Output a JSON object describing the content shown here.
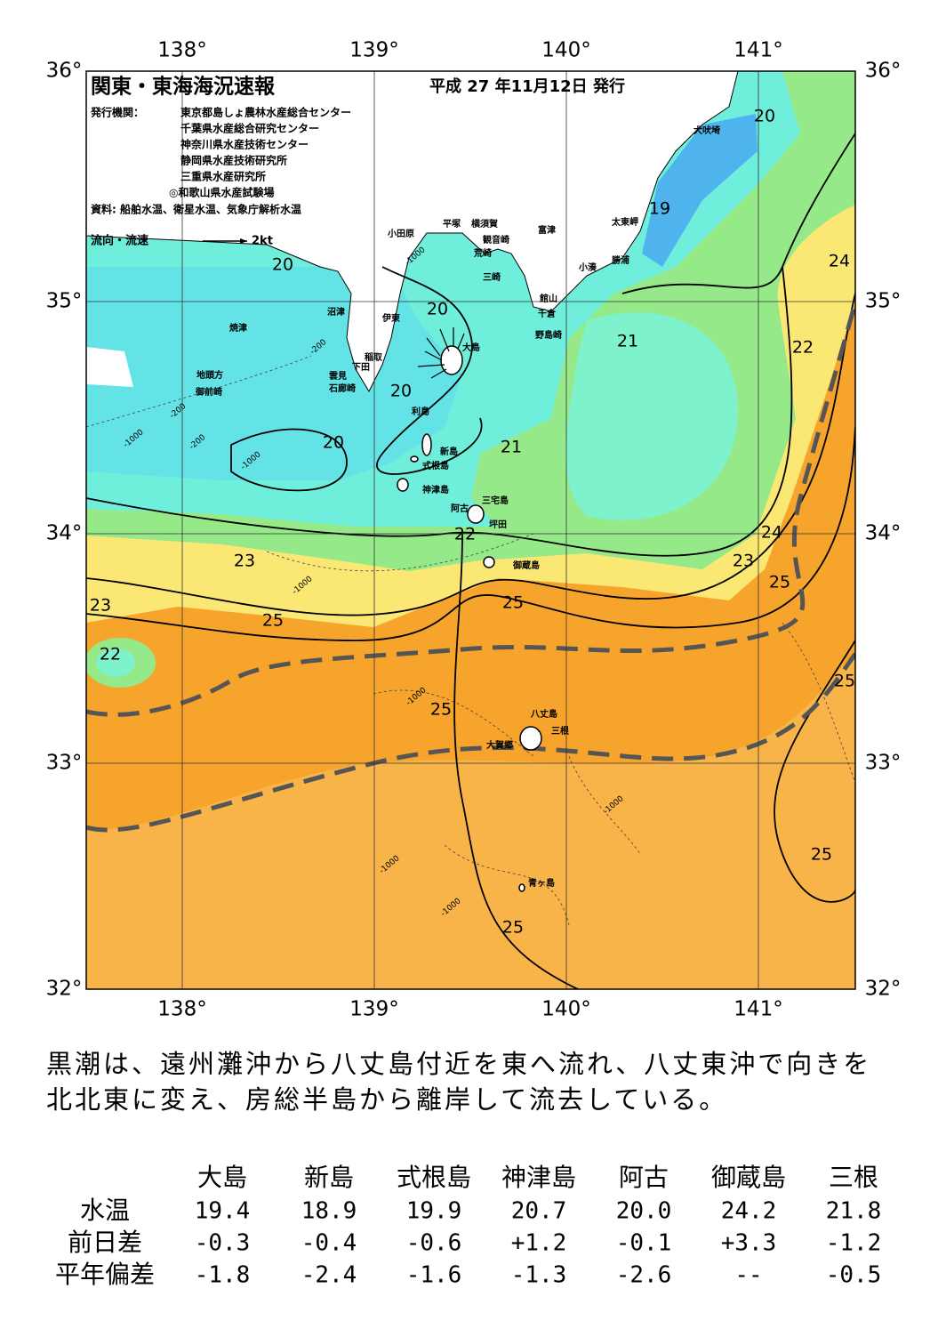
{
  "header": {
    "title": "関東・東海海況速報",
    "date": "平成 27 年11月12日 発行",
    "agency_label": "発行機関：",
    "agencies": [
      "東京都島しょ農林水産総合センター",
      "千葉県水産総合研究センター",
      "神奈川県水産技術センター",
      "静岡県水産技術研究所",
      "三重県水産研究所",
      "◎和歌山県水産試験場"
    ],
    "source": "資料: 船舶水温、衛星水温、気象庁解析水温",
    "legend_label": "流向・流速",
    "legend_speed": "2kt"
  },
  "map": {
    "lon_labels": [
      "138°",
      "139°",
      "140°",
      "141°"
    ],
    "lat_labels": [
      "36°",
      "35°",
      "34°",
      "33°",
      "32°"
    ],
    "places": [
      "犬吠埼",
      "太東岬",
      "富津",
      "横須賀",
      "平塚",
      "観音崎",
      "荒崎",
      "三崎",
      "勝浦",
      "小湊",
      "館山",
      "千倉",
      "野島崎",
      "小田原",
      "沼津",
      "伊東",
      "大島",
      "稲取",
      "下田",
      "雲見",
      "石廊崎",
      "焼津",
      "地頭方",
      "御前崎",
      "利島",
      "新島",
      "式根島",
      "神津島",
      "三宅島",
      "阿古",
      "坪田",
      "御蔵島",
      "八丈島",
      "三根",
      "大賀郷",
      "青ヶ島"
    ],
    "contour_labels": [
      "20",
      "19",
      "24",
      "20",
      "20",
      "21",
      "22",
      "20",
      "20",
      "21",
      "22",
      "24",
      "23",
      "23",
      "25",
      "25",
      "23",
      "25",
      "22",
      "25",
      "25",
      "25",
      "25"
    ],
    "depth_labels": [
      "-200",
      "-1000",
      "-200",
      "-1000",
      "-1000",
      "-200",
      "-1000",
      "-1000",
      "-1000",
      "-1000",
      "-1000"
    ]
  },
  "summary": [
    "黒潮は、遠州灘沖から八丈島付近を東へ流れ、八丈東沖で向きを",
    "北北東に変え、房総半島から離岸して流去している。"
  ],
  "table": {
    "header": [
      "大島",
      "新島",
      "式根島",
      "神津島",
      "阿古",
      "御蔵島",
      "三根"
    ],
    "rows": [
      {
        "label": "水温",
        "cells": [
          "19.4",
          "18.9",
          "19.9",
          "20.7",
          "20.0",
          "24.2",
          "21.8"
        ]
      },
      {
        "label": "前日差",
        "cells": [
          "-0.3",
          "-0.4",
          "-0.6",
          "+1.2",
          "-0.1",
          "+3.3",
          "-1.2"
        ]
      },
      {
        "label": "平年偏差",
        "cells": [
          "-1.8",
          "-2.4",
          "-1.6",
          "-1.3",
          "-2.6",
          "--",
          "-0.5"
        ]
      }
    ]
  }
}
